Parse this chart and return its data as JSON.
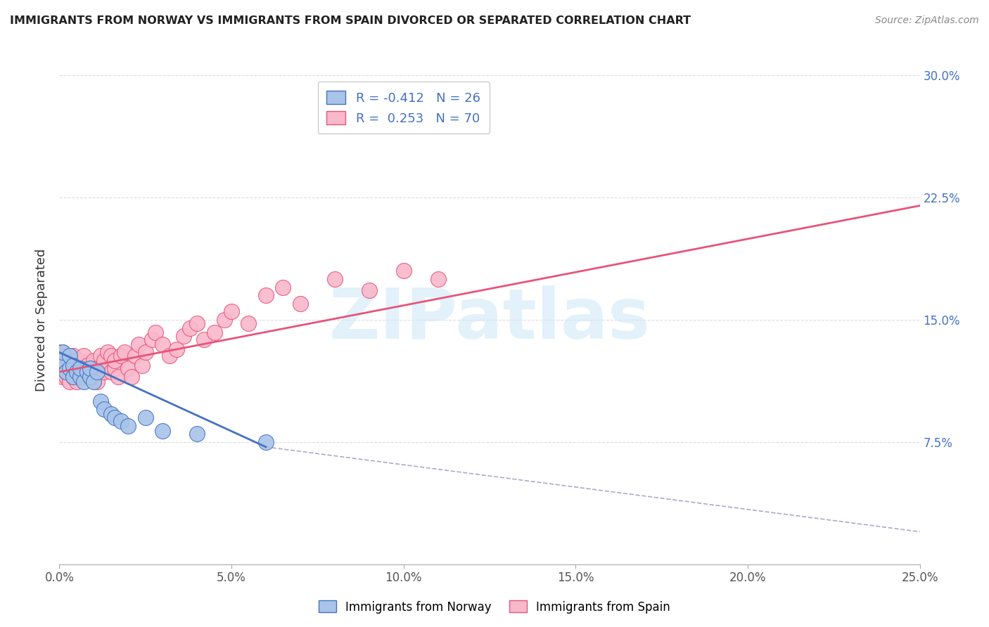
{
  "title": "IMMIGRANTS FROM NORWAY VS IMMIGRANTS FROM SPAIN DIVORCED OR SEPARATED CORRELATION CHART",
  "source": "Source: ZipAtlas.com",
  "ylabel": "Divorced or Separated",
  "legend_norway": "Immigrants from Norway",
  "legend_spain": "Immigrants from Spain",
  "R_norway": -0.412,
  "N_norway": 26,
  "R_spain": 0.253,
  "N_spain": 70,
  "xlim": [
    0.0,
    0.25
  ],
  "ylim": [
    0.0,
    0.3
  ],
  "xticks": [
    0.0,
    0.05,
    0.1,
    0.15,
    0.2,
    0.25
  ],
  "xtick_labels": [
    "0.0%",
    "5.0%",
    "10.0%",
    "15.0%",
    "20.0%",
    "25.0%"
  ],
  "yticks": [
    0.0,
    0.075,
    0.15,
    0.225,
    0.3
  ],
  "ytick_labels_right": [
    "",
    "7.5%",
    "15.0%",
    "22.5%",
    "30.0%"
  ],
  "color_norway": "#A8C4E8",
  "color_spain": "#F9B8CB",
  "line_norway": "#4472C4",
  "line_spain": "#E8547A",
  "background_color": "#FFFFFF",
  "grid_color": "#DDDDDD",
  "watermark": "ZIPatlas",
  "norway_points_x": [
    0.001,
    0.001,
    0.002,
    0.003,
    0.003,
    0.004,
    0.004,
    0.005,
    0.006,
    0.006,
    0.007,
    0.008,
    0.009,
    0.009,
    0.01,
    0.011,
    0.012,
    0.013,
    0.015,
    0.016,
    0.018,
    0.02,
    0.025,
    0.03,
    0.04,
    0.06
  ],
  "norway_points_y": [
    0.125,
    0.13,
    0.118,
    0.12,
    0.128,
    0.115,
    0.122,
    0.118,
    0.115,
    0.12,
    0.112,
    0.118,
    0.115,
    0.12,
    0.112,
    0.118,
    0.1,
    0.095,
    0.092,
    0.09,
    0.088,
    0.085,
    0.09,
    0.082,
    0.08,
    0.075
  ],
  "spain_points_x": [
    0.0,
    0.0,
    0.001,
    0.001,
    0.001,
    0.001,
    0.002,
    0.002,
    0.002,
    0.002,
    0.003,
    0.003,
    0.003,
    0.004,
    0.004,
    0.004,
    0.005,
    0.005,
    0.005,
    0.006,
    0.006,
    0.006,
    0.007,
    0.007,
    0.008,
    0.008,
    0.009,
    0.009,
    0.01,
    0.01,
    0.011,
    0.011,
    0.012,
    0.012,
    0.013,
    0.013,
    0.014,
    0.015,
    0.015,
    0.016,
    0.016,
    0.017,
    0.018,
    0.019,
    0.02,
    0.021,
    0.022,
    0.023,
    0.024,
    0.025,
    0.027,
    0.028,
    0.03,
    0.032,
    0.034,
    0.036,
    0.038,
    0.04,
    0.042,
    0.045,
    0.048,
    0.05,
    0.055,
    0.06,
    0.065,
    0.07,
    0.08,
    0.09,
    0.1,
    0.11
  ],
  "spain_points_y": [
    0.13,
    0.118,
    0.125,
    0.13,
    0.115,
    0.12,
    0.122,
    0.115,
    0.128,
    0.118,
    0.12,
    0.125,
    0.112,
    0.118,
    0.115,
    0.128,
    0.118,
    0.125,
    0.112,
    0.12,
    0.125,
    0.115,
    0.118,
    0.128,
    0.115,
    0.122,
    0.12,
    0.115,
    0.118,
    0.125,
    0.112,
    0.12,
    0.122,
    0.128,
    0.118,
    0.125,
    0.13,
    0.118,
    0.128,
    0.12,
    0.125,
    0.115,
    0.128,
    0.13,
    0.12,
    0.115,
    0.128,
    0.135,
    0.122,
    0.13,
    0.138,
    0.142,
    0.135,
    0.128,
    0.132,
    0.14,
    0.145,
    0.148,
    0.138,
    0.142,
    0.15,
    0.155,
    0.148,
    0.165,
    0.17,
    0.16,
    0.175,
    0.168,
    0.18,
    0.175
  ],
  "norway_line_x": [
    0.0,
    0.06
  ],
  "norway_line_y": [
    0.13,
    0.072
  ],
  "spain_line_x": [
    0.0,
    0.25
  ],
  "spain_line_y": [
    0.118,
    0.22
  ],
  "dashed_line_x": [
    0.06,
    0.25
  ],
  "dashed_line_y": [
    0.072,
    0.02
  ]
}
